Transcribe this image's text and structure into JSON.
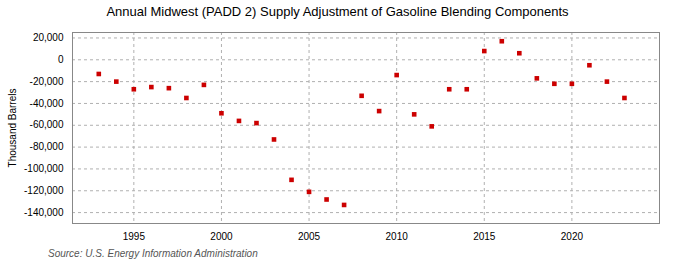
{
  "chart_data": {
    "type": "scatter",
    "title": "Annual Midwest (PADD 2) Supply Adjustment of Gasoline Blending Components",
    "ylabel": "Thousand Barrels",
    "annotation": "Source: U.S. Energy Information Administration",
    "color": "#cc0000",
    "marker": "square",
    "grid": true,
    "x": [
      1993,
      1994,
      1995,
      1996,
      1997,
      1998,
      1999,
      2000,
      2001,
      2002,
      2003,
      2004,
      2005,
      2006,
      2007,
      2008,
      2009,
      2010,
      2011,
      2012,
      2013,
      2014,
      2015,
      2016,
      2017,
      2018,
      2019,
      2020,
      2021,
      2022,
      2023
    ],
    "values": [
      -13000,
      -20000,
      -27000,
      -25000,
      -26000,
      -35000,
      -23000,
      -49000,
      -56000,
      -58000,
      -73000,
      -110000,
      -121000,
      -128000,
      -133000,
      -33000,
      -47000,
      -14000,
      -50000,
      -61000,
      -27000,
      -27000,
      8000,
      17000,
      6000,
      -17000,
      -22000,
      -22000,
      -5000,
      -20000,
      -35000
    ],
    "xlim": [
      1991.5,
      2025
    ],
    "xticks": [
      1995,
      2000,
      2005,
      2010,
      2015,
      2020
    ],
    "ylim": [
      -150000,
      25000
    ],
    "yticks": [
      {
        "value": 20000,
        "label": "20,000"
      },
      0,
      {
        "value": -20000,
        "label": "-20,000"
      },
      {
        "value": -40000,
        "label": "-40,000"
      },
      {
        "value": -60000,
        "label": "-60,000"
      },
      {
        "value": -80000,
        "label": "-80,000"
      },
      {
        "value": -100000,
        "label": "-100,000"
      },
      {
        "value": -120000,
        "label": "-120,000"
      },
      {
        "value": -140000,
        "label": "-140,000"
      }
    ]
  }
}
